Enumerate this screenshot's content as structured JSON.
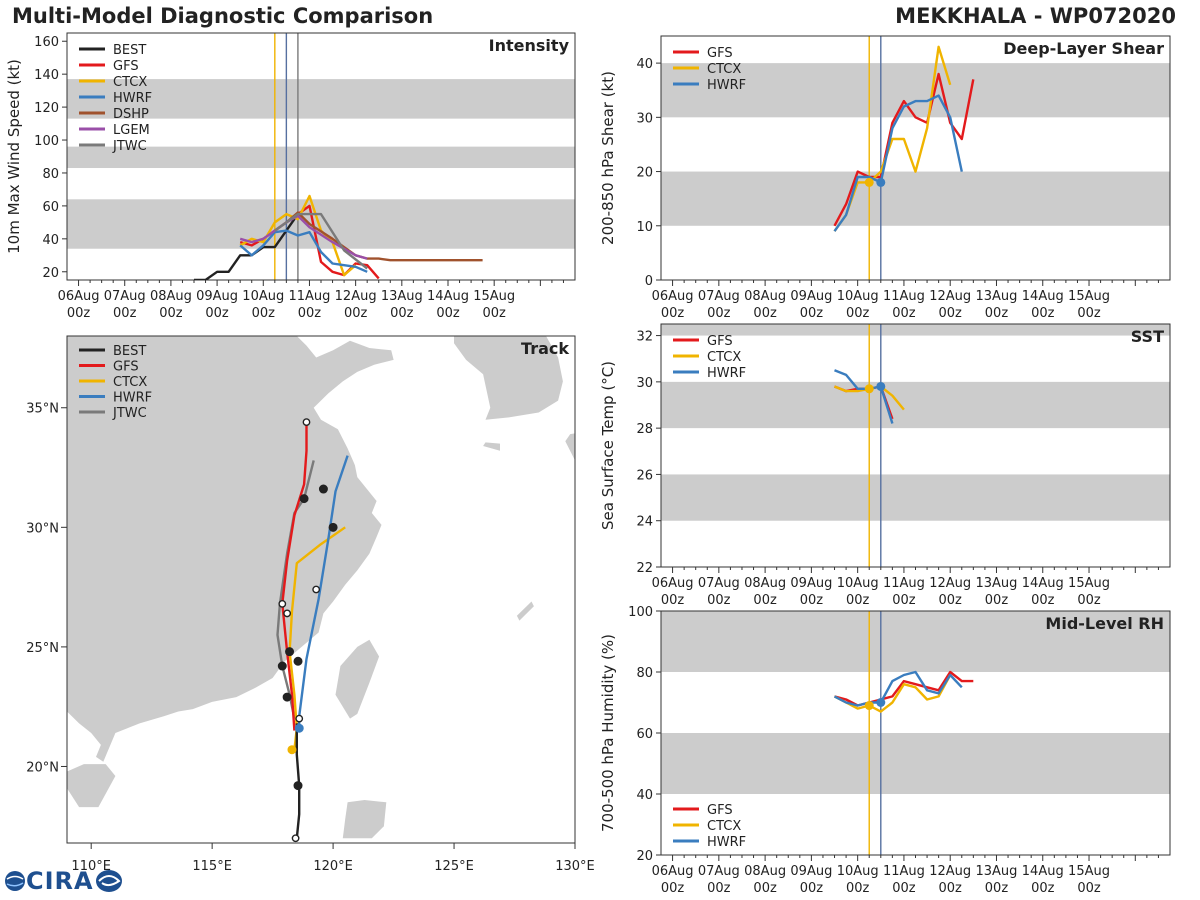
{
  "titles": {
    "left": "Multi-Model Diagnostic Comparison",
    "right": "MEKKHALA - WP072020"
  },
  "logo": {
    "text": "CIRA",
    "accent": "#1e4f8f"
  },
  "colors": {
    "BEST": "#222222",
    "GFS": "#e31a1c",
    "CTCX": "#f0b400",
    "HWRF": "#3a7dbf",
    "DSHP": "#a0522d",
    "LGEM": "#9a4fa8",
    "JTWC": "#7a7a7a",
    "band": "#cccccc",
    "land": "#cccccc",
    "vline_ctcx": "#f0b400",
    "vline_hwrf": "#5670a0",
    "vline_jtwc": "#7a7a7a"
  },
  "time_ticks": {
    "day_labels": [
      "06Aug",
      "07Aug",
      "08Aug",
      "09Aug",
      "10Aug",
      "11Aug",
      "12Aug",
      "13Aug",
      "14Aug",
      "15Aug"
    ],
    "hour_label": "00z"
  },
  "chart_data": [
    {
      "id": "intensity",
      "type": "line",
      "title": "Intensity",
      "ylabel": "10m Max Wind Speed (kt)",
      "ylim": [
        15,
        165
      ],
      "xlim": [
        5.75,
        16.75
      ],
      "yticks": [
        20,
        40,
        60,
        80,
        100,
        120,
        140,
        160
      ],
      "bands": [
        [
          34,
          64
        ],
        [
          83,
          96
        ],
        [
          113,
          137
        ]
      ],
      "vlines": [
        {
          "x": 10.25,
          "color": "vline_ctcx"
        },
        {
          "x": 10.5,
          "color": "vline_hwrf"
        },
        {
          "x": 10.75,
          "color": "vline_jtwc"
        }
      ],
      "legend": [
        "BEST",
        "GFS",
        "CTCX",
        "HWRF",
        "DSHP",
        "LGEM",
        "JTWC"
      ],
      "series": [
        {
          "name": "BEST",
          "x": [
            8.5,
            8.75,
            9.0,
            9.25,
            9.5,
            9.75,
            10.0,
            10.25,
            10.5,
            10.75
          ],
          "y": [
            15,
            15,
            20,
            20,
            30,
            30,
            35,
            35,
            45,
            55
          ]
        },
        {
          "name": "GFS",
          "x": [
            9.5,
            9.75,
            10.0,
            10.25,
            10.5,
            10.75,
            11.0,
            11.25,
            11.5,
            11.75,
            12.0,
            12.25,
            12.5
          ],
          "y": [
            38,
            36,
            40,
            45,
            50,
            55,
            60,
            26,
            20,
            18,
            25,
            24,
            16
          ]
        },
        {
          "name": "CTCX",
          "x": [
            9.5,
            9.75,
            10.0,
            10.25,
            10.5,
            10.75,
            11.0,
            11.25,
            11.5,
            11.75,
            12.0
          ],
          "y": [
            36,
            40,
            38,
            50,
            55,
            52,
            66,
            45,
            38,
            18,
            24
          ]
        },
        {
          "name": "HWRF",
          "x": [
            9.5,
            9.75,
            10.0,
            10.25,
            10.5,
            10.75,
            11.0,
            11.25,
            11.5,
            11.75,
            12.0,
            12.25
          ],
          "y": [
            36,
            30,
            36,
            44,
            45,
            42,
            44,
            32,
            25,
            24,
            23,
            20
          ]
        },
        {
          "name": "DSHP",
          "x": [
            10.5,
            10.75,
            11.0,
            11.5,
            12.0,
            12.25,
            12.5,
            12.75,
            13.0,
            14.0,
            14.75
          ],
          "y": [
            50,
            56,
            49,
            40,
            30,
            28,
            28,
            27,
            27,
            27,
            27
          ]
        },
        {
          "name": "LGEM",
          "x": [
            9.5,
            9.75,
            10.0,
            10.25,
            10.5,
            10.75,
            11.0,
            11.5,
            12.0,
            12.25
          ],
          "y": [
            40,
            38,
            40,
            45,
            50,
            54,
            47,
            38,
            30,
            28
          ]
        },
        {
          "name": "JTWC",
          "x": [
            10.25,
            10.5,
            10.75,
            11.0,
            11.25,
            11.75,
            12.25
          ],
          "y": [
            45,
            50,
            55,
            55,
            55,
            33,
            22
          ]
        }
      ]
    },
    {
      "id": "shear",
      "type": "line",
      "title": "Deep-Layer Shear",
      "ylabel": "200-850 hPa Shear (kt)",
      "ylim": [
        0,
        45
      ],
      "xlim": [
        5.75,
        16.75
      ],
      "yticks": [
        0,
        10,
        20,
        30,
        40
      ],
      "bands": [
        [
          10,
          20
        ],
        [
          30,
          40
        ]
      ],
      "vlines": [
        {
          "x": 10.25,
          "color": "vline_ctcx"
        },
        {
          "x": 10.5,
          "color": "vline_hwrf"
        }
      ],
      "legend": [
        "GFS",
        "CTCX",
        "HWRF"
      ],
      "series": [
        {
          "name": "GFS",
          "x": [
            9.5,
            9.75,
            10.0,
            10.25,
            10.5,
            10.75,
            11.0,
            11.25,
            11.5,
            11.75,
            12.0,
            12.25,
            12.5
          ],
          "y": [
            10,
            14,
            20,
            19,
            19,
            29,
            33,
            30,
            29,
            38,
            29,
            26,
            37
          ]
        },
        {
          "name": "CTCX",
          "x": [
            9.5,
            9.75,
            10.0,
            10.25,
            10.5,
            10.75,
            11.0,
            11.25,
            11.5,
            11.75,
            12.0
          ],
          "y": [
            9,
            12,
            18,
            18,
            20,
            26,
            26,
            20,
            28,
            43,
            36
          ]
        },
        {
          "name": "HWRF",
          "x": [
            9.5,
            9.75,
            10.0,
            10.25,
            10.5,
            10.75,
            11.0,
            11.25,
            11.5,
            11.75,
            12.0,
            12.25
          ],
          "y": [
            9,
            12,
            19,
            19,
            18,
            28,
            32,
            33,
            33,
            34,
            30,
            20
          ]
        }
      ],
      "markers": [
        {
          "series": "CTCX",
          "x": 10.25,
          "y": 18
        },
        {
          "series": "HWRF",
          "x": 10.5,
          "y": 18
        }
      ]
    },
    {
      "id": "sst",
      "type": "line",
      "title": "SST",
      "ylabel": "Sea Surface Temp (°C)",
      "ylim": [
        22,
        32.5
      ],
      "xlim": [
        5.75,
        16.75
      ],
      "yticks": [
        22,
        24,
        26,
        28,
        30,
        32
      ],
      "bands": [
        [
          24,
          26
        ],
        [
          28,
          30
        ],
        [
          32,
          33
        ]
      ],
      "vlines": [
        {
          "x": 10.25,
          "color": "vline_ctcx"
        },
        {
          "x": 10.5,
          "color": "vline_hwrf"
        }
      ],
      "legend": [
        "GFS",
        "CTCX",
        "HWRF"
      ],
      "series": [
        {
          "name": "GFS",
          "x": [
            9.5,
            9.75,
            10.0,
            10.25,
            10.5,
            10.75
          ],
          "y": [
            29.8,
            29.6,
            29.7,
            29.7,
            29.8,
            28.4
          ]
        },
        {
          "name": "CTCX",
          "x": [
            9.5,
            9.75,
            10.0,
            10.25,
            10.5,
            10.75,
            11.0
          ],
          "y": [
            29.8,
            29.6,
            29.6,
            29.7,
            29.8,
            29.4,
            28.8
          ]
        },
        {
          "name": "HWRF",
          "x": [
            9.5,
            9.75,
            10.0,
            10.25,
            10.5,
            10.75
          ],
          "y": [
            30.5,
            30.3,
            29.7,
            29.7,
            29.8,
            28.2
          ]
        }
      ],
      "markers": [
        {
          "series": "CTCX",
          "x": 10.25,
          "y": 29.7
        },
        {
          "series": "HWRF",
          "x": 10.5,
          "y": 29.8
        }
      ]
    },
    {
      "id": "rh",
      "type": "line",
      "title": "Mid-Level RH",
      "ylabel": "700-500 hPa Humidity (%)",
      "ylim": [
        20,
        100
      ],
      "xlim": [
        5.75,
        16.75
      ],
      "yticks": [
        20,
        40,
        60,
        80,
        100
      ],
      "bands": [
        [
          40,
          60
        ],
        [
          80,
          100
        ]
      ],
      "vlines": [
        {
          "x": 10.25,
          "color": "vline_ctcx"
        },
        {
          "x": 10.5,
          "color": "vline_hwrf"
        }
      ],
      "legend": [
        "GFS",
        "CTCX",
        "HWRF"
      ],
      "series": [
        {
          "name": "GFS",
          "x": [
            9.5,
            9.75,
            10.0,
            10.25,
            10.5,
            10.75,
            11.0,
            11.25,
            11.5,
            11.75,
            12.0,
            12.25,
            12.5
          ],
          "y": [
            72,
            71,
            69,
            70,
            71,
            72,
            77,
            76,
            75,
            74,
            80,
            77,
            77
          ]
        },
        {
          "name": "CTCX",
          "x": [
            9.5,
            9.75,
            10.0,
            10.25,
            10.5,
            10.75,
            11.0,
            11.25,
            11.5,
            11.75,
            12.0
          ],
          "y": [
            72,
            70,
            68,
            69,
            67,
            70,
            76,
            75,
            71,
            72,
            79
          ]
        },
        {
          "name": "HWRF",
          "x": [
            9.5,
            9.75,
            10.0,
            10.25,
            10.5,
            10.75,
            11.0,
            11.25,
            11.5,
            11.75,
            12.0,
            12.25
          ],
          "y": [
            72,
            70,
            69,
            70,
            70,
            77,
            79,
            80,
            74,
            73,
            79,
            75
          ]
        }
      ],
      "markers": [
        {
          "series": "CTCX",
          "x": 10.25,
          "y": 69
        },
        {
          "series": "HWRF",
          "x": 10.5,
          "y": 70
        }
      ]
    },
    {
      "id": "track",
      "type": "line",
      "title": "Track",
      "xlim": [
        109,
        130
      ],
      "ylim": [
        16.8,
        38
      ],
      "xticks": [
        110,
        115,
        120,
        125,
        130
      ],
      "xtick_labels": [
        "110°E",
        "115°E",
        "120°E",
        "125°E",
        "130°E"
      ],
      "yticks": [
        20,
        25,
        30,
        35
      ],
      "ytick_labels": [
        "20°N",
        "25°N",
        "30°N",
        "35°N"
      ],
      "legend": [
        "BEST",
        "GFS",
        "CTCX",
        "HWRF",
        "JTWC"
      ],
      "series": [
        {
          "name": "BEST",
          "lon": [
            118.5,
            118.6,
            118.6,
            118.5,
            118.5
          ],
          "lat": [
            17.0,
            18.0,
            19.2,
            20.5,
            21.8
          ]
        },
        {
          "name": "GFS",
          "lon": [
            118.4,
            118.3,
            118.1,
            117.9,
            118.1,
            118.4,
            118.8,
            118.9,
            118.9
          ],
          "lat": [
            21.5,
            23.0,
            24.8,
            26.8,
            28.6,
            30.5,
            31.8,
            33.2,
            34.4
          ]
        },
        {
          "name": "CTCX",
          "lon": [
            118.4,
            118.5,
            118.4,
            118.2,
            118.3,
            118.5,
            119.5,
            120.5
          ],
          "lat": [
            20.7,
            21.6,
            23.0,
            24.8,
            26.5,
            28.5,
            29.3,
            30.0
          ]
        },
        {
          "name": "HWRF",
          "lon": [
            118.6,
            118.6,
            118.9,
            119.4,
            119.8,
            120.1,
            120.6
          ],
          "lat": [
            21.6,
            22.1,
            24.5,
            27.0,
            29.5,
            31.5,
            33.0
          ]
        },
        {
          "name": "JTWC",
          "lon": [
            118.4,
            118.2,
            117.9,
            117.7,
            117.8,
            118.1,
            118.4,
            118.8,
            119.2
          ],
          "lat": [
            22.0,
            23.0,
            24.2,
            25.5,
            26.8,
            28.9,
            30.6,
            31.2,
            32.8
          ]
        }
      ],
      "markers": [
        {
          "series": "BEST",
          "lon": 118.45,
          "lat": 17.0,
          "open": true
        },
        {
          "series": "BEST",
          "lon": 118.55,
          "lat": 19.2,
          "open": false
        },
        {
          "series": "BEST",
          "lon": 118.55,
          "lat": 24.4,
          "open": false
        },
        {
          "series": "BEST",
          "lon": 118.2,
          "lat": 24.8,
          "open": false
        },
        {
          "series": "BEST",
          "lon": 117.9,
          "lat": 24.2,
          "open": false
        },
        {
          "series": "BEST",
          "lon": 118.1,
          "lat": 22.9,
          "open": false
        },
        {
          "series": "BEST",
          "lon": 118.6,
          "lat": 22.0,
          "open": true
        },
        {
          "series": "BEST",
          "lon": 118.1,
          "lat": 26.4,
          "open": true
        },
        {
          "series": "BEST",
          "lon": 117.9,
          "lat": 26.8,
          "open": true
        },
        {
          "series": "BEST",
          "lon": 118.9,
          "lat": 34.4,
          "open": true
        },
        {
          "series": "BEST",
          "lon": 119.3,
          "lat": 27.4,
          "open": true
        },
        {
          "series": "BEST",
          "lon": 120.0,
          "lat": 30.0,
          "open": false
        },
        {
          "series": "BEST",
          "lon": 119.6,
          "lat": 31.6,
          "open": false
        },
        {
          "series": "BEST",
          "lon": 118.8,
          "lat": 31.2,
          "open": false
        },
        {
          "series": "CTCX",
          "lon": 118.3,
          "lat": 20.7,
          "open": false
        },
        {
          "series": "HWRF",
          "lon": 118.6,
          "lat": 21.6,
          "open": false
        }
      ]
    }
  ]
}
